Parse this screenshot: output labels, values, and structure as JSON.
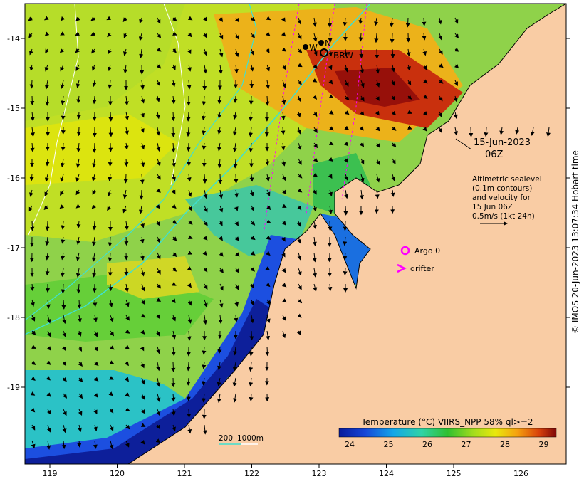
{
  "map": {
    "date_label": "15-Jun-2023",
    "time_label": "06Z",
    "legend_lines": [
      "Altimetric sealevel",
      "(0.1m contours)",
      "and velocity for",
      "15 Jun 06Z",
      "0.5m/s (1kt 24h)"
    ],
    "argo_label": "Argo 0",
    "drifter_label": "drifter",
    "depth_label_200": "200",
    "depth_label_1000": "1000m",
    "colorbar_title": "Temperature (°C) VIIRS_NPP 58% ql>=2",
    "colorbar_ticks": [
      "24",
      "25",
      "26",
      "27",
      "28",
      "29"
    ],
    "credit": "© IMOS 20-Jun-2023 13:07:34 Hobart time",
    "x_ticks": [
      "119",
      "120",
      "121",
      "122",
      "123",
      "124",
      "125",
      "126"
    ],
    "y_ticks": [
      "-14",
      "-15",
      "-16",
      "-17",
      "-18",
      "-19"
    ],
    "stations": [
      "W",
      "N",
      "BRW"
    ],
    "colors": {
      "land": "#f9cca4",
      "argo": "#ff00ff",
      "drifter": "#ff00ff",
      "contour_200": "#40e0d0",
      "contour_1000": "#ffffff"
    }
  }
}
